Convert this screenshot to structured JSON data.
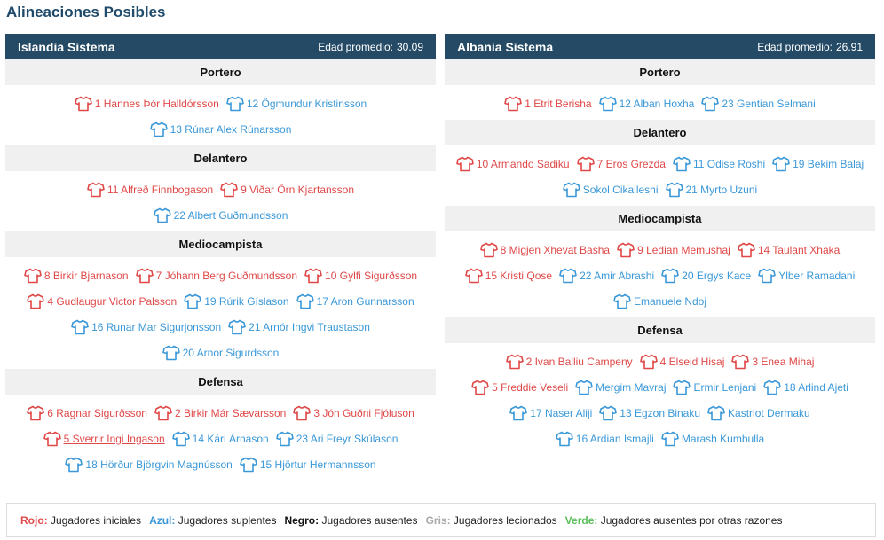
{
  "page_title": "Alineaciones Posibles",
  "colors": {
    "header_bg": "#244a66",
    "starter": "#e04848",
    "sub": "#3a98d8",
    "absent": "#111111",
    "injured": "#aaaaaa",
    "other": "#5cbf5c"
  },
  "teams": [
    {
      "name": "Islandia Sistema",
      "avg_label": "Edad promedio:",
      "avg_value": "30.09",
      "sections": [
        {
          "title": "Portero",
          "rows": [
            [
              {
                "text": "1 Hannes Þór Halldórsson",
                "color": "red"
              },
              {
                "text": "12 Ögmundur Kristinsson",
                "color": "blue"
              }
            ],
            [
              {
                "text": "13 Rúnar Alex Rúnarsson",
                "color": "blue"
              }
            ]
          ]
        },
        {
          "title": "Delantero",
          "rows": [
            [
              {
                "text": "11 Alfreð Finnbogason",
                "color": "red"
              },
              {
                "text": "9 Viðar Örn Kjartansson",
                "color": "red"
              }
            ],
            [
              {
                "text": "22 Albert Guðmundsson",
                "color": "blue"
              }
            ]
          ]
        },
        {
          "title": "Mediocampista",
          "rows": [
            [
              {
                "text": "8 Birkir Bjarnason",
                "color": "red"
              },
              {
                "text": "7 Jóhann Berg Guðmundsson",
                "color": "red"
              },
              {
                "text": "10 Gylfi Sigurðsson",
                "color": "red"
              }
            ],
            [
              {
                "text": "4 Gudlaugur Victor Palsson",
                "color": "red"
              },
              {
                "text": "19 Rúrik Gíslason",
                "color": "blue"
              },
              {
                "text": "17 Aron Gunnarsson",
                "color": "blue"
              }
            ],
            [
              {
                "text": "16 Runar Mar Sigurjonsson",
                "color": "blue"
              },
              {
                "text": "21 Arnór Ingvi Traustason",
                "color": "blue"
              }
            ],
            [
              {
                "text": "20 Arnor Sigurdsson",
                "color": "blue"
              }
            ]
          ]
        },
        {
          "title": "Defensa",
          "rows": [
            [
              {
                "text": "6 Ragnar Sigurðsson",
                "color": "red"
              },
              {
                "text": "2 Birkir Már Sævarsson",
                "color": "red"
              },
              {
                "text": "3 Jón Guðni Fjóluson",
                "color": "red"
              }
            ],
            [
              {
                "text": "5 Sverrir Ingi Ingason",
                "color": "red",
                "underline": true
              },
              {
                "text": "14 Kári Árnason",
                "color": "blue"
              },
              {
                "text": "23 Ari Freyr Skúlason",
                "color": "blue"
              }
            ],
            [
              {
                "text": "18 Hörður Björgvin Magnússon",
                "color": "blue"
              },
              {
                "text": "15 Hjörtur Hermannsson",
                "color": "blue"
              }
            ]
          ]
        }
      ]
    },
    {
      "name": "Albania Sistema",
      "avg_label": "Edad promedio:",
      "avg_value": "26.91",
      "sections": [
        {
          "title": "Portero",
          "rows": [
            [
              {
                "text": "1 Etrit Berisha",
                "color": "red"
              },
              {
                "text": "12 Alban Hoxha",
                "color": "blue"
              },
              {
                "text": "23 Gentian Selmani",
                "color": "blue"
              }
            ]
          ]
        },
        {
          "title": "Delantero",
          "rows": [
            [
              {
                "text": "10 Armando Sadiku",
                "color": "red"
              },
              {
                "text": "7 Eros Grezda",
                "color": "red"
              },
              {
                "text": "11 Odise Roshi",
                "color": "blue"
              },
              {
                "text": "19 Bekim Balaj",
                "color": "blue"
              }
            ],
            [
              {
                "text": "Sokol Cikalleshi",
                "color": "blue"
              },
              {
                "text": "21 Myrto Uzuni",
                "color": "blue"
              }
            ]
          ]
        },
        {
          "title": "Mediocampista",
          "rows": [
            [
              {
                "text": "8 Migjen Xhevat Basha",
                "color": "red"
              },
              {
                "text": "9 Ledian Memushaj",
                "color": "red"
              },
              {
                "text": "14 Taulant Xhaka",
                "color": "red"
              }
            ],
            [
              {
                "text": "15 Kristi Qose",
                "color": "red"
              },
              {
                "text": "22 Amir Abrashi",
                "color": "blue"
              },
              {
                "text": "20 Ergys Kace",
                "color": "blue"
              },
              {
                "text": "Ylber Ramadani",
                "color": "blue"
              }
            ],
            [
              {
                "text": "Emanuele Ndoj",
                "color": "blue"
              }
            ]
          ]
        },
        {
          "title": "Defensa",
          "rows": [
            [
              {
                "text": "2 Ivan Balliu Campeny",
                "color": "red"
              },
              {
                "text": "4 Elseid Hisaj",
                "color": "red"
              },
              {
                "text": "3 Enea Mihaj",
                "color": "red"
              }
            ],
            [
              {
                "text": "5 Freddie Veseli",
                "color": "red"
              },
              {
                "text": "Mergim Mavraj",
                "color": "blue"
              },
              {
                "text": "Ermir Lenjani",
                "color": "blue"
              },
              {
                "text": "18 Arlind Ajeti",
                "color": "blue"
              }
            ],
            [
              {
                "text": "17 Naser Aliji",
                "color": "blue"
              },
              {
                "text": "13 Egzon Binaku",
                "color": "blue"
              },
              {
                "text": "Kastriot Dermaku",
                "color": "blue"
              }
            ],
            [
              {
                "text": "16 Ardian Ismajli",
                "color": "blue"
              },
              {
                "text": "Marash Kumbulla",
                "color": "blue"
              }
            ]
          ]
        }
      ]
    }
  ],
  "legend": [
    {
      "key": "Rojo:",
      "desc": "Jugadores iniciales",
      "color": "red"
    },
    {
      "key": "Azul:",
      "desc": "Jugadores suplentes",
      "color": "blue"
    },
    {
      "key": "Negro:",
      "desc": "Jugadores ausentes",
      "color": "black"
    },
    {
      "key": "Gris:",
      "desc": "Jugadores lecionados",
      "color": "grey"
    },
    {
      "key": "Verde:",
      "desc": "Jugadores ausentes por otras razones",
      "color": "green"
    }
  ]
}
